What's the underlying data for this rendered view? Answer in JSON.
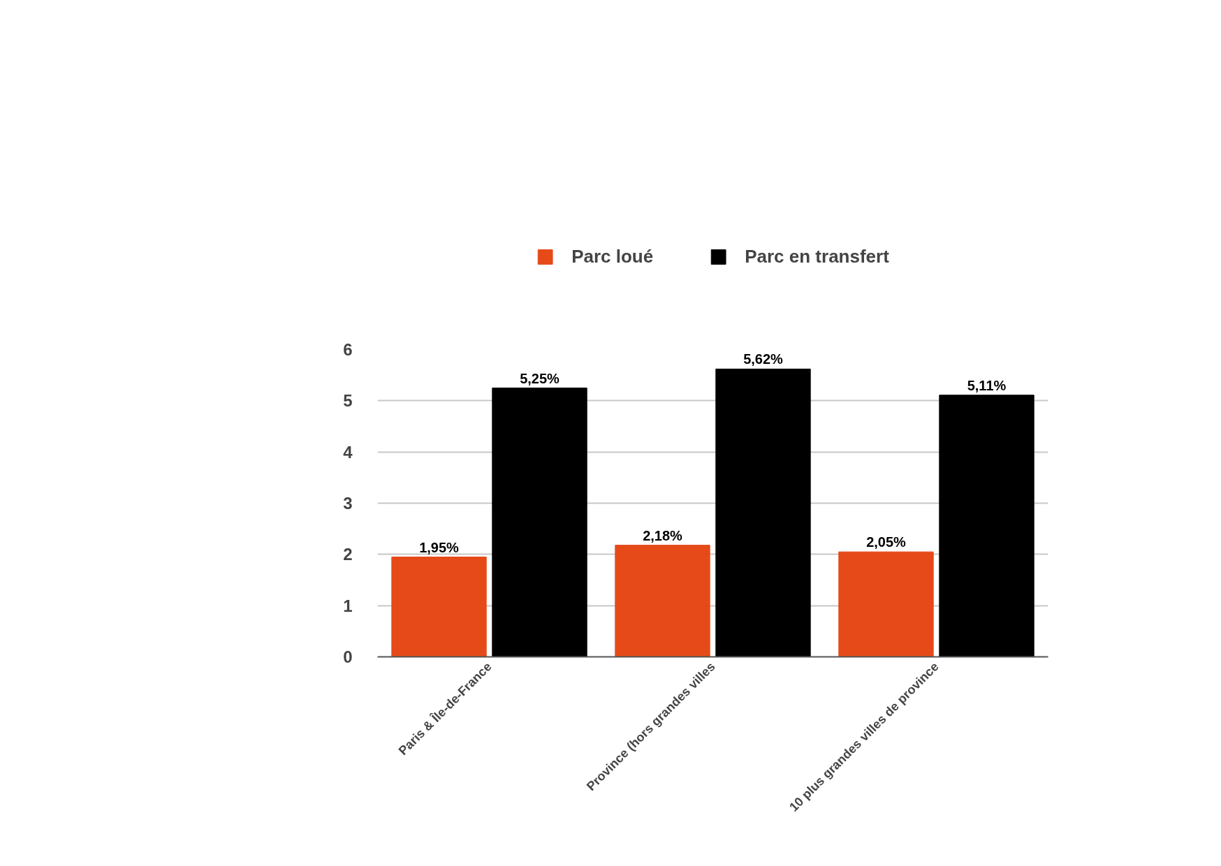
{
  "chart_data": {
    "type": "bar",
    "categories": [
      "Paris & Île-de-France",
      "Province (hors grandes villes",
      "10 plus grandes villes de province"
    ],
    "series": [
      {
        "name": "Parc loué",
        "color": "#e64a19",
        "values": [
          1.95,
          2.18,
          2.05
        ],
        "value_labels": [
          "1,95%",
          "2,18%",
          "2,05%"
        ]
      },
      {
        "name": "Parc en transfert",
        "color": "#000000",
        "values": [
          5.25,
          5.62,
          5.11
        ],
        "value_labels": [
          "5,25%",
          "5,62%",
          "5,11%"
        ]
      }
    ],
    "ylim": [
      0,
      6
    ],
    "yticks": [
      0,
      1,
      2,
      3,
      4,
      5,
      6
    ],
    "grid": "y",
    "legend": "top"
  }
}
